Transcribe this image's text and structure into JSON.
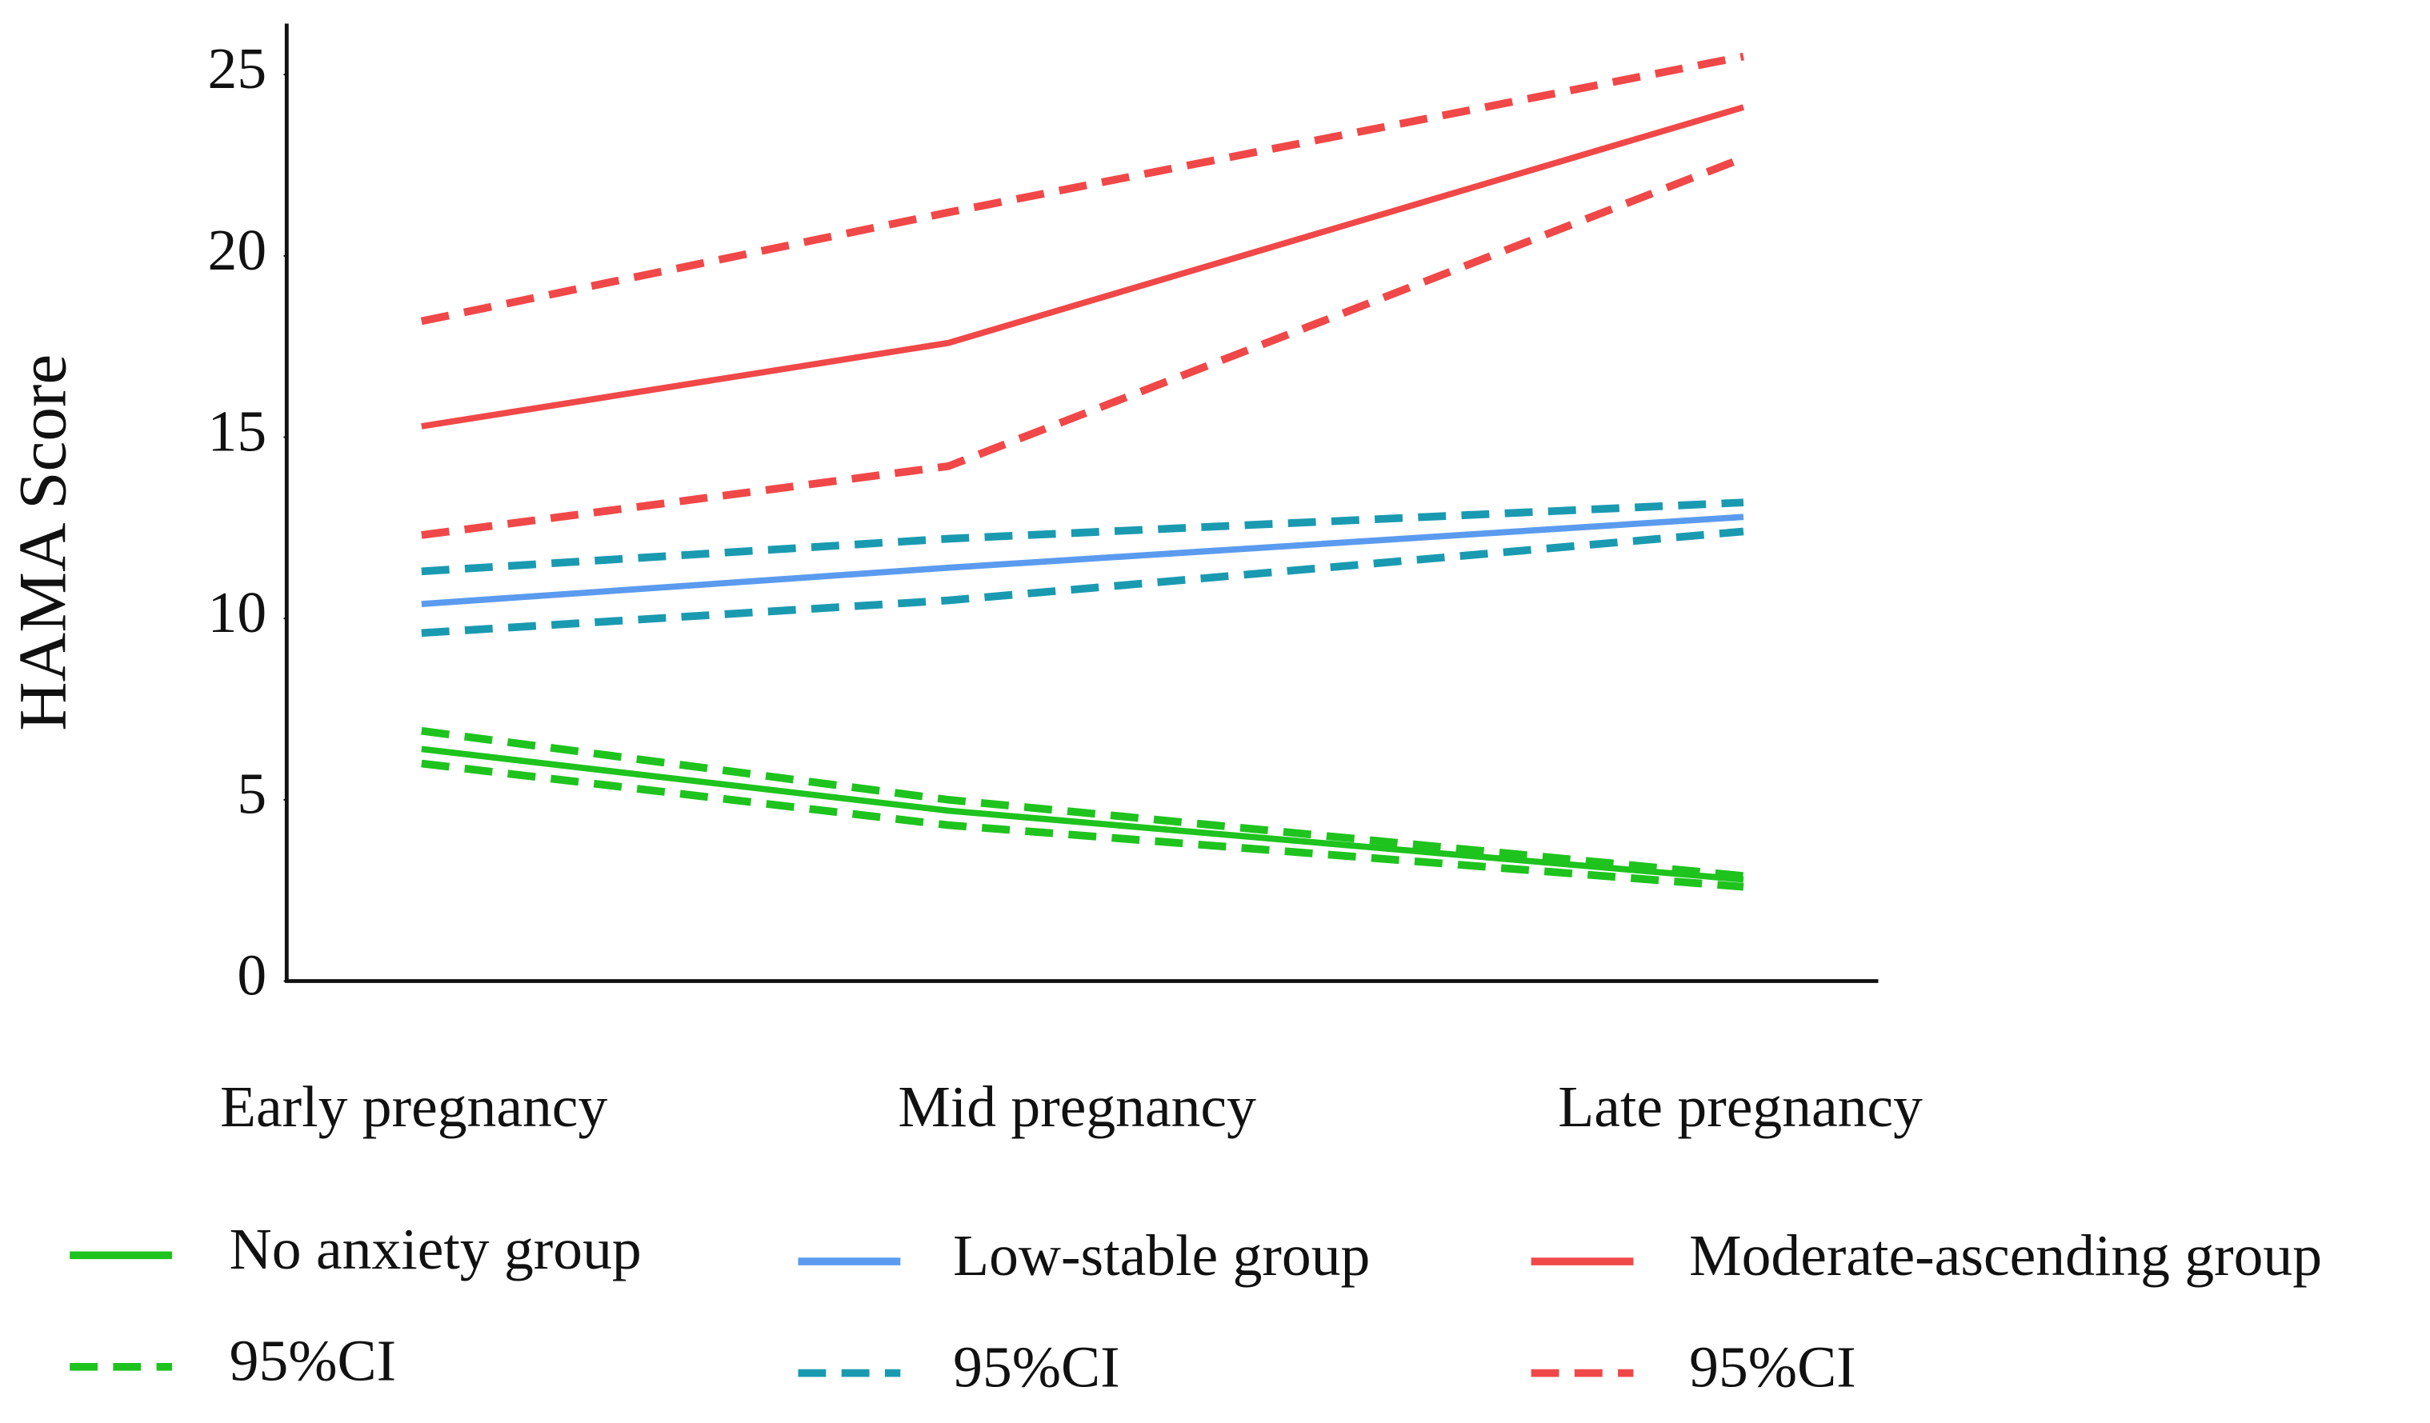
{
  "chart_data": {
    "type": "line",
    "y_label": "HAMA Score",
    "categories": [
      "Early pregnancy",
      "Mid pregnancy",
      "Late pregnancy"
    ],
    "ylim": [
      0,
      26
    ],
    "yticks": [
      0,
      5,
      10,
      15,
      20,
      25
    ],
    "series": [
      {
        "name": "No anxiety group",
        "color": "#1ec31e",
        "dashed": false,
        "values": [
          6.4,
          4.7,
          2.8
        ]
      },
      {
        "name": "95%CI",
        "color": "#1ec31e",
        "dashed": true,
        "values": [
          6.9,
          5.0,
          2.9
        ]
      },
      {
        "name": "95%CI",
        "color": "#1ec31e",
        "dashed": true,
        "values": [
          6.0,
          4.3,
          2.6
        ]
      },
      {
        "name": "Low-stable group",
        "color": "#5b9bef",
        "dashed": false,
        "values": [
          10.4,
          11.4,
          12.8
        ]
      },
      {
        "name": "95%CI",
        "color": "#1a9ab0",
        "dashed": true,
        "values": [
          11.3,
          12.2,
          13.2
        ]
      },
      {
        "name": "95%CI",
        "color": "#1a9ab0",
        "dashed": true,
        "values": [
          9.6,
          10.5,
          12.4
        ]
      },
      {
        "name": "Moderate-ascending group",
        "color": "#f04848",
        "dashed": false,
        "values": [
          15.3,
          17.6,
          24.1
        ]
      },
      {
        "name": "95%CI",
        "color": "#f04848",
        "dashed": true,
        "values": [
          18.2,
          21.2,
          25.5
        ]
      },
      {
        "name": "95%CI",
        "color": "#f04848",
        "dashed": true,
        "values": [
          12.3,
          14.2,
          22.7
        ]
      }
    ]
  }
}
